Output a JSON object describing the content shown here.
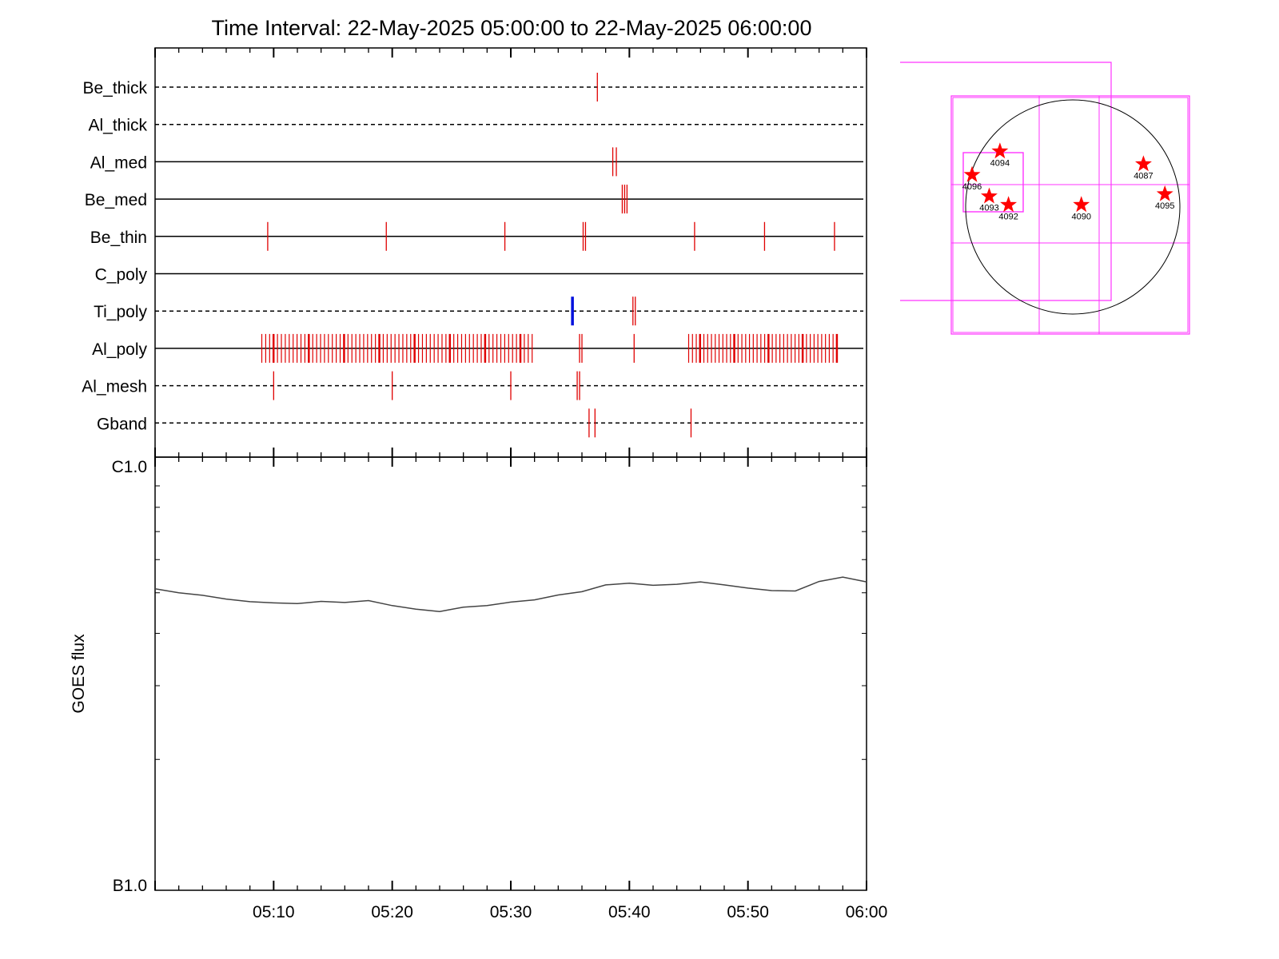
{
  "chart_data": [
    {
      "type": "event-timeline",
      "title": "Time Interval: 22-May-2025 05:00:00 to 22-May-2025 06:00:00",
      "x_range": [
        "05:00",
        "06:00"
      ],
      "x_ticks": [
        "05:10",
        "05:20",
        "05:30",
        "05:40",
        "05:50",
        "06:00"
      ],
      "rows": [
        {
          "label": "Be_thick",
          "style": "dashed",
          "events": [
            "05:37.3"
          ]
        },
        {
          "label": "Al_thick",
          "style": "dashed",
          "events": []
        },
        {
          "label": "Al_med",
          "style": "solid",
          "events": [
            "05:38.6",
            "05:38.9"
          ]
        },
        {
          "label": "Be_med",
          "style": "solid",
          "events": [
            "05:39.4",
            "05:39.6",
            "05:39.8"
          ]
        },
        {
          "label": "Be_thin",
          "style": "solid",
          "events": [
            "05:09.5",
            "05:19.5",
            "05:29.5",
            "05:36.1",
            "05:36.3",
            "05:45.5",
            "05:51.4",
            "05:57.3"
          ]
        },
        {
          "label": "C_poly",
          "style": "solid",
          "events": []
        },
        {
          "label": "Ti_poly",
          "style": "dashed",
          "events": [
            "05:40.3",
            "05:40.5"
          ],
          "highlight_events": [
            "05:35.2"
          ]
        },
        {
          "label": "Al_poly",
          "style": "solid",
          "event_groups": [
            {
              "start": "05:09.0",
              "end": "05:31.8",
              "count": 70
            },
            {
              "start": "05:45.0",
              "end": "05:57.5",
              "count": 40
            }
          ],
          "events": [
            "05:35.8",
            "05:36.0",
            "05:40.4"
          ]
        },
        {
          "label": "Al_mesh",
          "style": "dashed",
          "events": [
            "05:10.0",
            "05:20.0",
            "05:30.0",
            "05:35.6",
            "05:35.8"
          ]
        },
        {
          "label": "Gband",
          "style": "dashed",
          "events": [
            "05:36.6",
            "05:37.1",
            "05:45.2"
          ]
        }
      ],
      "colors": {
        "event": "#e00000",
        "highlight": "#0010dd",
        "axis": "#000000"
      }
    },
    {
      "type": "line",
      "ylabel": "GOES flux",
      "y_scale": "log",
      "y_ticks": [
        "C1.0",
        "B1.0"
      ],
      "y_range": [
        1e-07,
        1e-06
      ],
      "x_range": [
        "05:00",
        "06:00"
      ],
      "x_ticks": [
        "05:10",
        "05:20",
        "05:30",
        "05:40",
        "05:50",
        "06:00"
      ],
      "series": [
        {
          "x": [
            "05:00",
            "05:02",
            "05:04",
            "05:06",
            "05:08",
            "05:10",
            "05:12",
            "05:14",
            "05:16",
            "05:18",
            "05:20",
            "05:22",
            "05:24",
            "05:26",
            "05:28",
            "05:30",
            "05:32",
            "05:34",
            "05:36",
            "05:38",
            "05:40",
            "05:42",
            "05:44",
            "05:46",
            "05:48",
            "05:50",
            "05:52",
            "05:54",
            "05:56",
            "05:58",
            "06:00"
          ],
          "values": [
            5.11e-07,
            5e-07,
            4.93e-07,
            4.83e-07,
            4.76e-07,
            4.73e-07,
            4.71e-07,
            4.77e-07,
            4.74e-07,
            4.79e-07,
            4.66e-07,
            4.57e-07,
            4.51e-07,
            4.62e-07,
            4.66e-07,
            4.75e-07,
            4.81e-07,
            4.94e-07,
            5.03e-07,
            5.22e-07,
            5.27e-07,
            5.21e-07,
            5.24e-07,
            5.31e-07,
            5.22e-07,
            5.13e-07,
            5.06e-07,
            5.05e-07,
            5.32e-07,
            5.45e-07,
            5.31e-07
          ]
        }
      ],
      "colors": {
        "line": "#444444"
      }
    },
    {
      "type": "solar-disk-map",
      "regions": [
        {
          "label": "4094",
          "pos": [
            -0.68,
            0.52
          ]
        },
        {
          "label": "4087",
          "pos": [
            0.66,
            0.4
          ]
        },
        {
          "label": "4096",
          "pos": [
            -0.94,
            0.3
          ]
        },
        {
          "label": "4093",
          "pos": [
            -0.78,
            0.1
          ]
        },
        {
          "label": "4095",
          "pos": [
            0.86,
            0.12
          ]
        },
        {
          "label": "4092",
          "pos": [
            -0.6,
            0.02
          ]
        },
        {
          "label": "4090",
          "pos": [
            0.08,
            0.02
          ]
        }
      ],
      "colors": {
        "star": "#ff0000",
        "fov": "#ff33ff",
        "disk": "#000000"
      }
    }
  ]
}
